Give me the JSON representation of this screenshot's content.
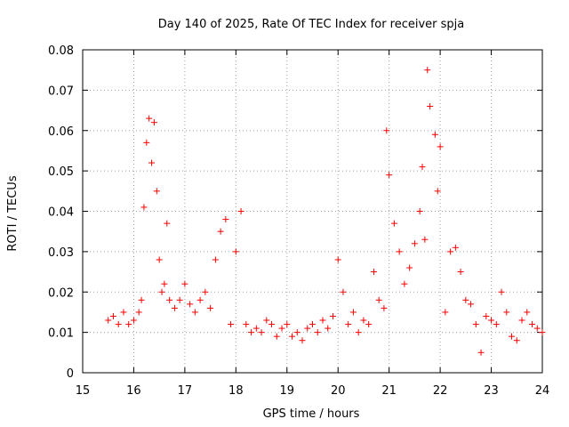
{
  "chart_data": {
    "type": "scatter",
    "title": "Day 140 of 2025, Rate Of TEC Index for receiver spja",
    "xlabel": "GPS time / hours",
    "ylabel": "ROTI / TECUs",
    "xlim": [
      15,
      24
    ],
    "ylim": [
      0,
      0.08
    ],
    "xticks": [
      "15",
      "16",
      "17",
      "18",
      "19",
      "20",
      "21",
      "22",
      "23",
      "24"
    ],
    "yticks": [
      "0",
      "0.01",
      "0.02",
      "0.03",
      "0.04",
      "0.05",
      "0.06",
      "0.07",
      "0.08"
    ],
    "grid": true,
    "marker": "+",
    "color": "#ff0000",
    "series": [
      {
        "name": "ROTI",
        "x": [
          15.5,
          15.6,
          15.7,
          15.8,
          15.9,
          16.0,
          16.1,
          16.15,
          16.2,
          16.25,
          16.3,
          16.35,
          16.4,
          16.45,
          16.5,
          16.55,
          16.6,
          16.65,
          16.7,
          16.8,
          16.9,
          17.0,
          17.1,
          17.2,
          17.3,
          17.4,
          17.5,
          17.6,
          17.7,
          17.8,
          17.9,
          18.0,
          18.1,
          18.2,
          18.3,
          18.4,
          18.5,
          18.6,
          18.7,
          18.8,
          18.9,
          19.0,
          19.1,
          19.2,
          19.3,
          19.4,
          19.5,
          19.6,
          19.7,
          19.8,
          19.9,
          20.0,
          20.1,
          20.2,
          20.3,
          20.4,
          20.5,
          20.6,
          20.7,
          20.8,
          20.9,
          20.95,
          21.0,
          21.1,
          21.2,
          21.3,
          21.4,
          21.5,
          21.6,
          21.65,
          21.7,
          21.75,
          21.8,
          21.9,
          21.95,
          22.0,
          22.1,
          22.2,
          22.3,
          22.4,
          22.5,
          22.6,
          22.7,
          22.8,
          22.9,
          23.0,
          23.1,
          23.2,
          23.3,
          23.4,
          23.5,
          23.6,
          23.7,
          23.8,
          23.9,
          24.0
        ],
        "y": [
          0.013,
          0.014,
          0.012,
          0.015,
          0.012,
          0.013,
          0.015,
          0.018,
          0.041,
          0.057,
          0.063,
          0.052,
          0.062,
          0.045,
          0.028,
          0.02,
          0.022,
          0.037,
          0.018,
          0.016,
          0.018,
          0.022,
          0.017,
          0.015,
          0.018,
          0.02,
          0.016,
          0.028,
          0.035,
          0.038,
          0.012,
          0.03,
          0.04,
          0.012,
          0.01,
          0.011,
          0.01,
          0.013,
          0.012,
          0.009,
          0.011,
          0.012,
          0.009,
          0.01,
          0.008,
          0.011,
          0.012,
          0.01,
          0.013,
          0.011,
          0.014,
          0.028,
          0.02,
          0.012,
          0.015,
          0.01,
          0.013,
          0.012,
          0.025,
          0.018,
          0.016,
          0.06,
          0.049,
          0.037,
          0.03,
          0.022,
          0.026,
          0.032,
          0.04,
          0.051,
          0.033,
          0.075,
          0.066,
          0.059,
          0.045,
          0.056,
          0.015,
          0.03,
          0.031,
          0.025,
          0.018,
          0.017,
          0.012,
          0.005,
          0.014,
          0.013,
          0.012,
          0.02,
          0.015,
          0.009,
          0.008,
          0.013,
          0.015,
          0.012,
          0.011,
          0.01
        ]
      }
    ]
  }
}
